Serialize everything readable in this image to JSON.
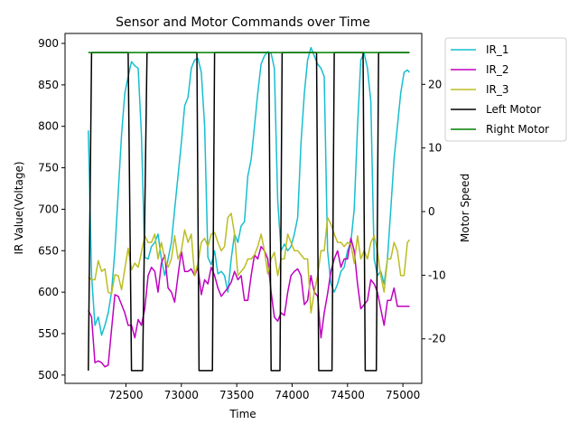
{
  "chart_data": {
    "type": "line",
    "title": "Sensor and Motor Commands over Time",
    "xlabel": "Time",
    "ylabel_left": "IR Value(Voltage)",
    "ylabel_right": "Motor Speed",
    "xlim": [
      71950,
      75170
    ],
    "ylim_left": [
      490,
      912
    ],
    "ylim_right": [
      -27,
      28
    ],
    "xticks": [
      72500,
      73000,
      73500,
      74000,
      74500,
      75000
    ],
    "yticks_left": [
      500,
      550,
      600,
      650,
      700,
      750,
      800,
      850,
      900
    ],
    "yticks_right": [
      -20,
      -10,
      0,
      10,
      20
    ],
    "legend_position": "upper-right-outside",
    "grid": false,
    "colors": {
      "IR_1": "#17becf",
      "IR_2": "#c000c0",
      "IR_3": "#bcbd22",
      "Left Motor": "#000000",
      "Right Motor": "#008000"
    },
    "series": [
      {
        "name": "IR_1",
        "axis": "left",
        "x": [
          72160,
          72190,
          72220,
          72250,
          72280,
          72310,
          72340,
          72370,
          72400,
          72430,
          72460,
          72490,
          72520,
          72550,
          72580,
          72610,
          72640,
          72670,
          72700,
          72730,
          72760,
          72790,
          72820,
          72850,
          72880,
          72910,
          72940,
          72970,
          73000,
          73030,
          73060,
          73090,
          73120,
          73150,
          73180,
          73210,
          73240,
          73270,
          73300,
          73330,
          73360,
          73390,
          73420,
          73450,
          73480,
          73510,
          73540,
          73570,
          73600,
          73630,
          73660,
          73690,
          73720,
          73750,
          73780,
          73810,
          73840,
          73870,
          73900,
          73930,
          73960,
          73990,
          74020,
          74050,
          74080,
          74110,
          74140,
          74170,
          74200,
          74230,
          74260,
          74290,
          74320,
          74350,
          74380,
          74410,
          74440,
          74470,
          74500,
          74530,
          74560,
          74590,
          74620,
          74650,
          74680,
          74710,
          74740,
          74770,
          74800,
          74830,
          74860,
          74890,
          74920,
          74950,
          74980,
          75010,
          75040,
          75060
        ],
        "y": [
          795,
          620,
          560,
          570,
          548,
          560,
          575,
          600,
          650,
          720,
          790,
          840,
          860,
          878,
          873,
          870,
          790,
          642,
          640,
          655,
          660,
          670,
          640,
          620,
          640,
          660,
          700,
          740,
          780,
          825,
          835,
          870,
          880,
          882,
          865,
          800,
          642,
          633,
          650,
          622,
          625,
          620,
          600,
          640,
          670,
          660,
          680,
          685,
          740,
          760,
          800,
          840,
          875,
          885,
          890,
          888,
          870,
          710,
          650,
          658,
          650,
          655,
          670,
          690,
          780,
          840,
          880,
          895,
          885,
          875,
          870,
          860,
          650,
          610,
          600,
          610,
          625,
          630,
          650,
          660,
          700,
          800,
          880,
          888,
          870,
          830,
          640,
          620,
          625,
          610,
          640,
          700,
          760,
          800,
          840,
          865,
          868,
          865
        ],
        "note": ""
      },
      {
        "name": "IR_2",
        "axis": "left",
        "x": [
          72160,
          72190,
          72220,
          72250,
          72280,
          72310,
          72340,
          72370,
          72400,
          72430,
          72460,
          72490,
          72520,
          72550,
          72580,
          72610,
          72640,
          72670,
          72700,
          72730,
          72760,
          72790,
          72820,
          72850,
          72880,
          72910,
          72940,
          72970,
          73000,
          73030,
          73060,
          73090,
          73120,
          73150,
          73180,
          73210,
          73240,
          73270,
          73300,
          73330,
          73360,
          73390,
          73420,
          73450,
          73480,
          73510,
          73540,
          73570,
          73600,
          73630,
          73660,
          73690,
          73720,
          73750,
          73780,
          73810,
          73840,
          73870,
          73900,
          73930,
          73960,
          73990,
          74020,
          74050,
          74080,
          74110,
          74140,
          74170,
          74200,
          74230,
          74260,
          74290,
          74320,
          74350,
          74380,
          74410,
          74440,
          74470,
          74500,
          74530,
          74560,
          74590,
          74620,
          74650,
          74680,
          74710,
          74740,
          74770,
          74800,
          74830,
          74860,
          74890,
          74920,
          74950,
          74980,
          75010,
          75040,
          75060
        ],
        "y": [
          578,
          570,
          515,
          517,
          515,
          510,
          512,
          555,
          597,
          595,
          585,
          575,
          560,
          560,
          545,
          567,
          560,
          580,
          620,
          630,
          625,
          600,
          635,
          645,
          605,
          600,
          588,
          620,
          650,
          625,
          625,
          628,
          620,
          630,
          597,
          615,
          610,
          630,
          620,
          605,
          595,
          600,
          605,
          612,
          625,
          615,
          620,
          590,
          590,
          620,
          645,
          640,
          655,
          650,
          640,
          600,
          570,
          565,
          575,
          572,
          600,
          620,
          625,
          628,
          620,
          585,
          590,
          620,
          600,
          595,
          545,
          575,
          598,
          625,
          640,
          650,
          630,
          640,
          640,
          665,
          650,
          610,
          580,
          585,
          590,
          615,
          610,
          600,
          580,
          560,
          590,
          590,
          605,
          583,
          583,
          583,
          583,
          583
        ]
      },
      {
        "name": "IR_3",
        "axis": "left",
        "x": [
          72160,
          72190,
          72220,
          72250,
          72280,
          72310,
          72340,
          72370,
          72400,
          72430,
          72460,
          72490,
          72520,
          72550,
          72580,
          72610,
          72640,
          72670,
          72700,
          72730,
          72760,
          72790,
          72820,
          72850,
          72880,
          72910,
          72940,
          72970,
          73000,
          73030,
          73060,
          73090,
          73120,
          73150,
          73180,
          73210,
          73240,
          73270,
          73300,
          73330,
          73360,
          73390,
          73420,
          73450,
          73480,
          73510,
          73540,
          73570,
          73600,
          73630,
          73660,
          73690,
          73720,
          73750,
          73780,
          73810,
          73840,
          73870,
          73900,
          73930,
          73960,
          73990,
          74020,
          74050,
          74080,
          74110,
          74140,
          74170,
          74200,
          74230,
          74260,
          74290,
          74320,
          74350,
          74380,
          74410,
          74440,
          74470,
          74500,
          74530,
          74560,
          74590,
          74620,
          74650,
          74680,
          74710,
          74740,
          74770,
          74800,
          74830,
          74860,
          74890,
          74920,
          74950,
          74980,
          75010,
          75040,
          75060
        ],
        "y": [
          618,
          615,
          615,
          638,
          625,
          628,
          600,
          598,
          621,
          620,
          603,
          628,
          653,
          627,
          635,
          630,
          648,
          668,
          660,
          660,
          670,
          640,
          660,
          640,
          630,
          640,
          668,
          640,
          650,
          675,
          660,
          670,
          620,
          635,
          660,
          665,
          655,
          670,
          672,
          660,
          650,
          655,
          690,
          695,
          670,
          620,
          625,
          630,
          640,
          640,
          645,
          655,
          670,
          650,
          622,
          640,
          648,
          620,
          640,
          640,
          670,
          660,
          650,
          650,
          645,
          640,
          640,
          575,
          600,
          620,
          650,
          650,
          690,
          682,
          670,
          660,
          660,
          655,
          660,
          658,
          635,
          668,
          640,
          650,
          640,
          660,
          668,
          650,
          620,
          600,
          640,
          640,
          660,
          650,
          620,
          620,
          660,
          663
        ]
      },
      {
        "name": "Left Motor",
        "axis": "right",
        "x": [
          72160,
          72190,
          72520,
          72550,
          72650,
          72690,
          73140,
          73160,
          73280,
          73300,
          73790,
          73810,
          73890,
          73910,
          74220,
          74240,
          74360,
          74380,
          74640,
          74660,
          74760,
          74780,
          75060
        ],
        "y": [
          -25,
          25,
          25,
          -25,
          -25,
          25,
          25,
          -25,
          -25,
          25,
          25,
          -25,
          -25,
          25,
          25,
          -25,
          -25,
          25,
          25,
          -25,
          -25,
          25,
          25
        ]
      },
      {
        "name": "Right Motor",
        "axis": "right",
        "x": [
          72160,
          75060
        ],
        "y": [
          25,
          25
        ]
      }
    ]
  }
}
